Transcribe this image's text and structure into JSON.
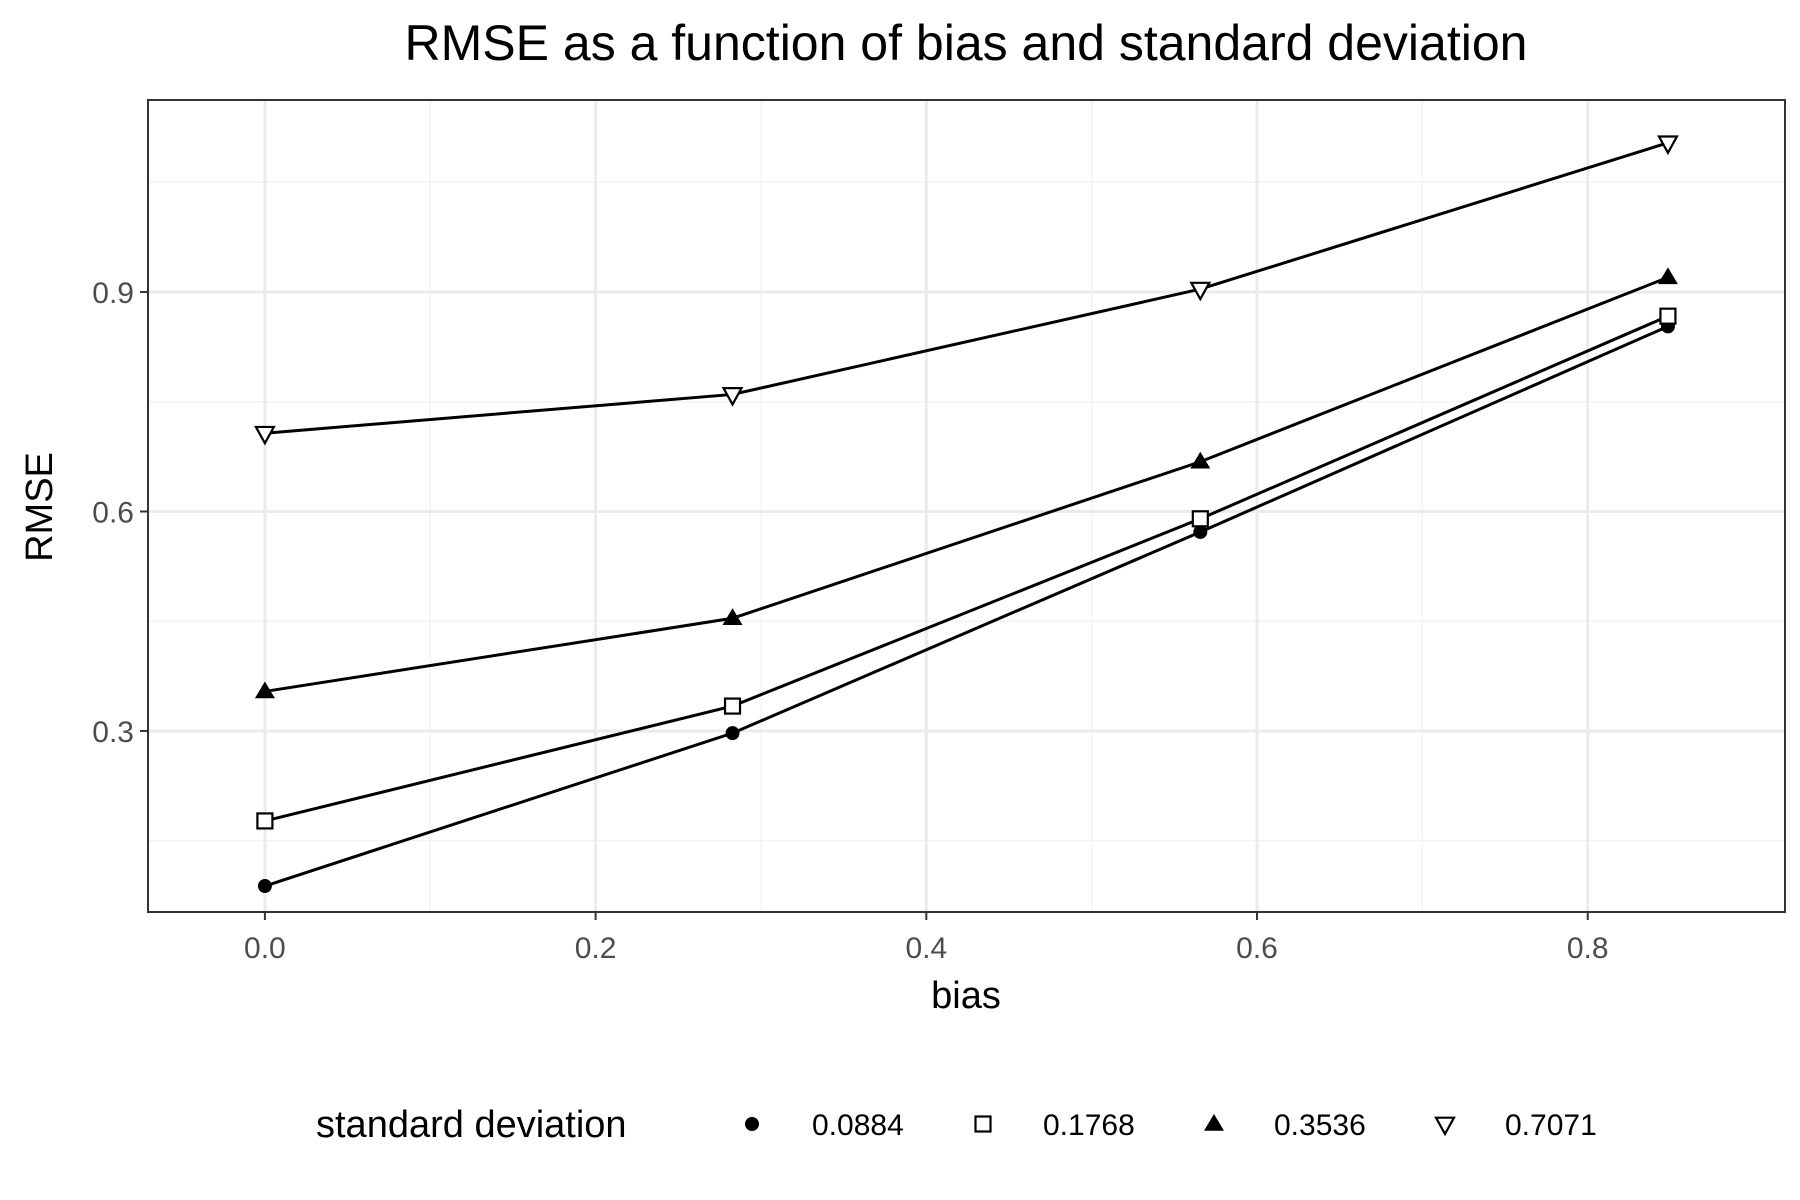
{
  "chart_data": {
    "type": "line",
    "title": "RMSE as a function of bias and standard deviation",
    "xlabel": "bias",
    "ylabel": "RMSE",
    "xlim": [
      -0.0707,
      0.9193
    ],
    "ylim": [
      0.0525,
      1.1625
    ],
    "x_ticks": [
      0.0,
      0.2,
      0.4,
      0.6,
      0.8
    ],
    "x_tick_labels": [
      "0.0",
      "0.2",
      "0.4",
      "0.6",
      "0.8"
    ],
    "y_ticks": [
      0.3,
      0.6,
      0.9
    ],
    "y_tick_labels": [
      "0.3",
      "0.6",
      "0.9"
    ],
    "x_minor": [
      0.1,
      0.3,
      0.5,
      0.7
    ],
    "y_minor": [
      0.15,
      0.45,
      0.75,
      1.05
    ],
    "grid": true,
    "legend_title": "standard deviation",
    "legend_position": "bottom",
    "x": [
      0,
      0.2828,
      0.5657,
      0.8485
    ],
    "series": [
      {
        "name": "0.0884",
        "marker": "filled-circle",
        "values": [
          0.088,
          0.297,
          0.572,
          0.853
        ]
      },
      {
        "name": "0.1768",
        "marker": "open-square",
        "values": [
          0.177,
          0.334,
          0.59,
          0.867
        ]
      },
      {
        "name": "0.3536",
        "marker": "filled-triangle-up",
        "values": [
          0.354,
          0.454,
          0.668,
          0.92
        ]
      },
      {
        "name": "0.7071",
        "marker": "open-triangle-down",
        "values": [
          0.707,
          0.76,
          0.904,
          1.104
        ]
      }
    ],
    "colors": {
      "line": "#000000",
      "panel_border": "#333333",
      "grid_major": "#ebebeb",
      "grid_minor": "#f3f3f3",
      "tick_text": "#4d4d4d"
    }
  }
}
